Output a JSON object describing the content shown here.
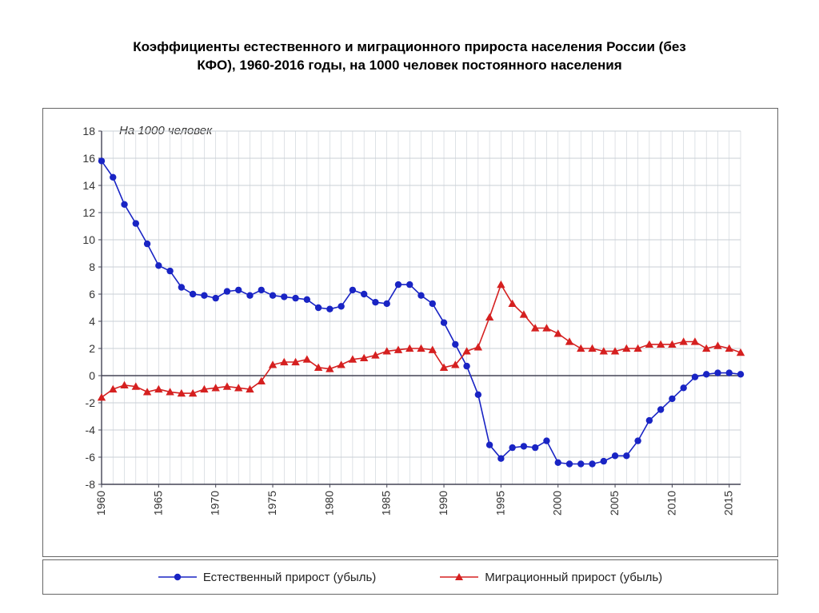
{
  "title_line1": "Коэффициенты естественного и миграционного прироста населения России (без",
  "title_line2": "КФО), 1960-2016 годы, на 1000 человек постоянного населения",
  "chart": {
    "type": "line",
    "ylabel": "На 1000 человек",
    "ylabel_fontsize": 15,
    "ylabel_italic": true,
    "background_color": "#ffffff",
    "grid_color": "#c9cfd6",
    "axis_color": "#445",
    "ylim": [
      -8,
      18
    ],
    "ytick_step": 2,
    "yticks": [
      -8,
      -6,
      -4,
      -2,
      0,
      2,
      4,
      6,
      8,
      10,
      12,
      14,
      16,
      18
    ],
    "years_start": 1960,
    "years_end": 2016,
    "xticks": [
      1960,
      1965,
      1970,
      1975,
      1980,
      1985,
      1990,
      1995,
      2000,
      2005,
      2010,
      2015
    ],
    "tick_fontsize": 14,
    "series": [
      {
        "name": "Естественный прирост (убыль)",
        "color": "#1924c4",
        "marker": "circle",
        "marker_size": 4.2,
        "line_width": 1.6,
        "values": [
          15.8,
          14.6,
          12.6,
          11.2,
          9.7,
          8.1,
          7.7,
          6.5,
          6.0,
          5.9,
          5.7,
          6.2,
          6.3,
          5.9,
          6.3,
          5.9,
          5.8,
          5.7,
          5.6,
          5.0,
          4.9,
          5.1,
          6.3,
          6.0,
          5.4,
          5.3,
          6.7,
          6.7,
          5.9,
          5.3,
          3.9,
          2.3,
          0.7,
          -1.4,
          -5.1,
          -6.1,
          -5.3,
          -5.2,
          -5.3,
          -4.8,
          -6.4,
          -6.5,
          -6.5,
          -6.5,
          -6.3,
          -5.9,
          -5.9,
          -4.8,
          -3.3,
          -2.5,
          -1.7,
          -0.9,
          -0.1,
          0.1,
          0.2,
          0.2,
          0.1
        ]
      },
      {
        "name": "Миграционный прирост (убыль)",
        "color": "#d52020",
        "marker": "triangle",
        "marker_size": 5.2,
        "line_width": 1.6,
        "values": [
          -1.6,
          -1.0,
          -0.7,
          -0.8,
          -1.2,
          -1.0,
          -1.2,
          -1.3,
          -1.3,
          -1.0,
          -0.9,
          -0.8,
          -0.9,
          -1.0,
          -0.4,
          0.8,
          1.0,
          1.0,
          1.2,
          0.6,
          0.5,
          0.8,
          1.2,
          1.3,
          1.5,
          1.8,
          1.9,
          2.0,
          2.0,
          1.9,
          0.6,
          0.8,
          1.8,
          2.1,
          4.3,
          6.7,
          5.3,
          4.5,
          3.5,
          3.5,
          3.1,
          2.5,
          2.0,
          2.0,
          1.8,
          1.8,
          2.0,
          2.0,
          2.3,
          2.3,
          2.3,
          2.5,
          2.5,
          2.0,
          2.2,
          2.0,
          1.7
        ]
      }
    ],
    "legend": {
      "items": [
        {
          "label": "Естественный прирост (убыль)",
          "color": "#1924c4",
          "marker": "circle"
        },
        {
          "label": "Миграционный прирост (убыль)",
          "color": "#d52020",
          "marker": "triangle"
        }
      ]
    }
  }
}
